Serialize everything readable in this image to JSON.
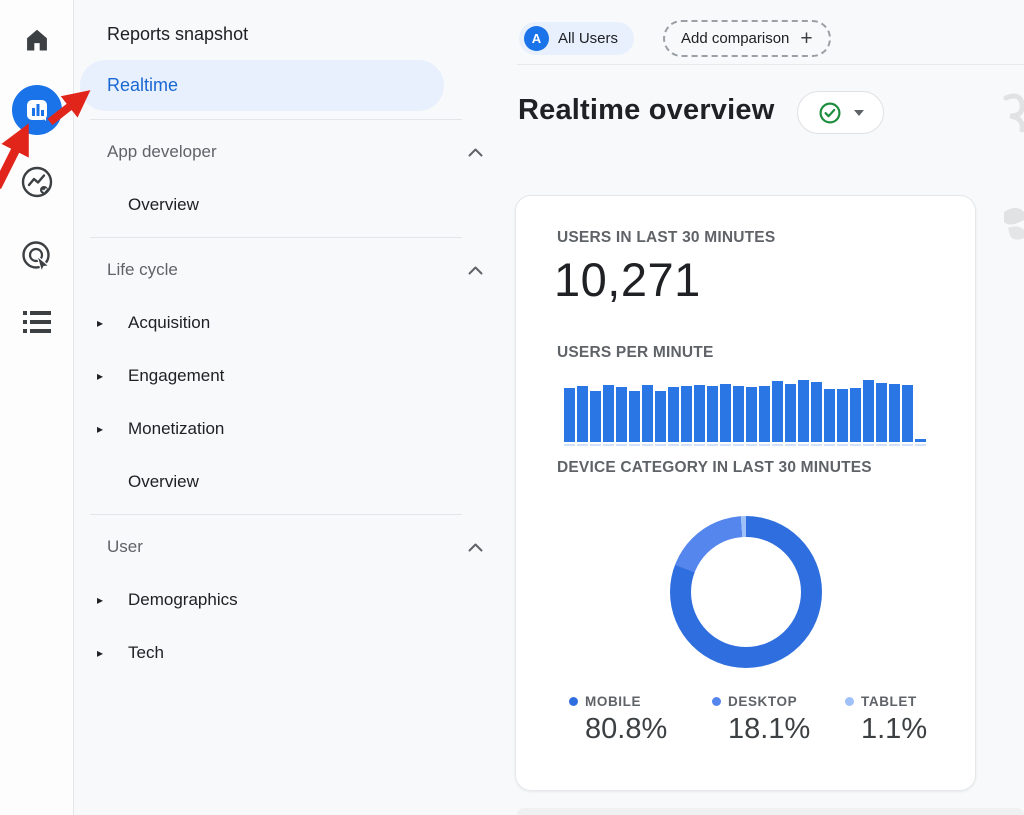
{
  "nav_rail": {
    "items": [
      {
        "name": "home",
        "icon": "home-icon",
        "active": false
      },
      {
        "name": "reports",
        "icon": "reports-icon",
        "active": true
      },
      {
        "name": "explore",
        "icon": "explore-icon",
        "active": false
      },
      {
        "name": "advertising",
        "icon": "advertising-icon",
        "active": false
      },
      {
        "name": "library",
        "icon": "library-icon",
        "active": false
      }
    ]
  },
  "sidebar": {
    "items_top": [
      {
        "label": "Reports snapshot",
        "active": false
      },
      {
        "label": "Realtime",
        "active": true
      }
    ],
    "sections": [
      {
        "header": "App developer",
        "items": [
          {
            "label": "Overview",
            "expandable": false
          }
        ]
      },
      {
        "header": "Life cycle",
        "items": [
          {
            "label": "Acquisition",
            "expandable": true
          },
          {
            "label": "Engagement",
            "expandable": true
          },
          {
            "label": "Monetization",
            "expandable": true
          },
          {
            "label": "Overview",
            "expandable": false
          }
        ]
      },
      {
        "header": "User",
        "items": [
          {
            "label": "Demographics",
            "expandable": true
          },
          {
            "label": "Tech",
            "expandable": true
          }
        ]
      }
    ]
  },
  "header": {
    "all_users_chip": {
      "avatar_letter": "A",
      "label": "All Users"
    },
    "add_comparison_chip": {
      "label": "Add comparison",
      "plus": "+"
    },
    "page_title": "Realtime overview"
  },
  "card": {
    "users_30min_label": "USERS IN LAST 30 MINUTES",
    "users_30min_value": "10,271"
  },
  "chart_data": [
    {
      "type": "bar",
      "title": "USERS PER MINUTE",
      "values": [
        312,
        324,
        294,
        330,
        318,
        294,
        330,
        294,
        318,
        324,
        330,
        324,
        336,
        324,
        318,
        324,
        354,
        336,
        360,
        350,
        306,
        306,
        312,
        360,
        342,
        336,
        330,
        18
      ],
      "bar_color": "#2b76e5",
      "grid": false,
      "note": "per-minute user counts for last 30 minutes, newest bar (far right) is small"
    },
    {
      "type": "pie",
      "donut": true,
      "title": "DEVICE CATEGORY IN LAST 30 MINUTES",
      "categories": [
        "MOBILE",
        "DESKTOP",
        "TABLET"
      ],
      "values": [
        80.8,
        18.1,
        1.1
      ],
      "value_suffix": "%",
      "colors": [
        "#2f6ede",
        "#5486ee",
        "#9fc0f8"
      ],
      "legend_position": "bottom"
    }
  ],
  "colors": {
    "accent_blue": "#1a73e8",
    "active_pill_bg": "#e8f0fe",
    "realtime_link": "#1967d2",
    "verified_green": "#1e8e3e",
    "annotation_red": "#e2251b"
  }
}
